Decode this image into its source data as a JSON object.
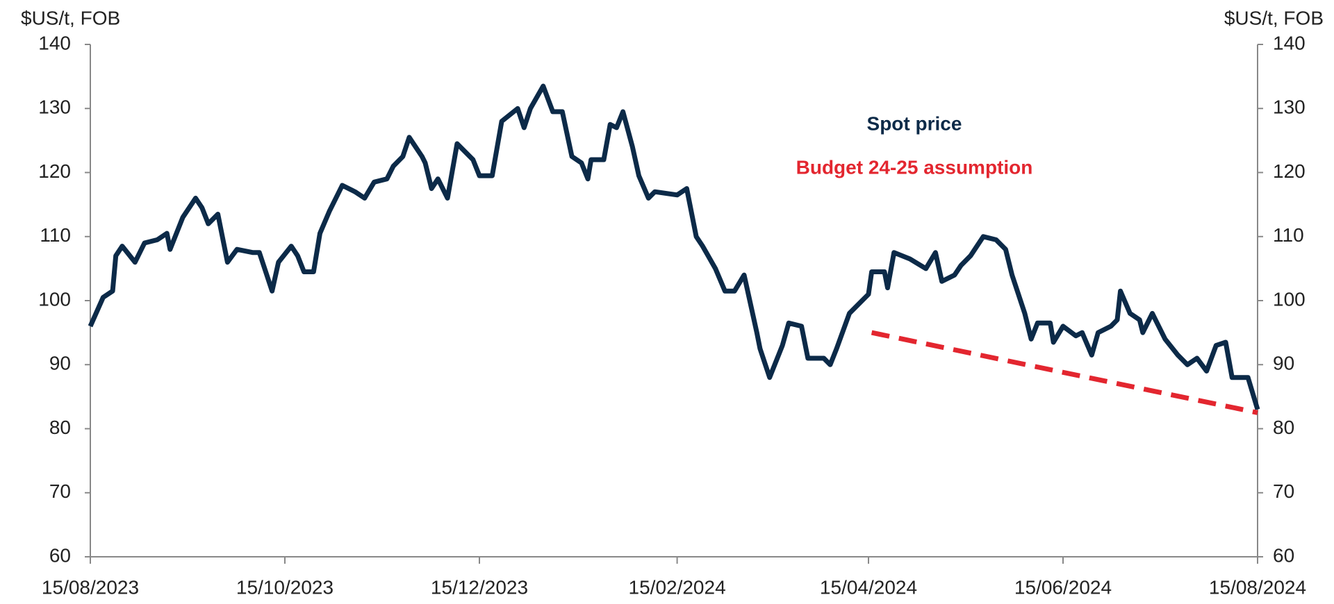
{
  "chart_data": {
    "type": "line",
    "y_label": "$US/t, FOB",
    "y2_label": "$US/t, FOB",
    "ylim": [
      60,
      140
    ],
    "yticks": [
      60,
      70,
      80,
      90,
      100,
      110,
      120,
      130,
      140
    ],
    "y2lim": [
      60,
      140
    ],
    "y2ticks": [
      60,
      70,
      80,
      90,
      100,
      110,
      120,
      130,
      140
    ],
    "xlim": [
      "15/08/2023",
      "15/08/2024"
    ],
    "xticks": [
      "15/08/2023",
      "15/10/2023",
      "15/12/2023",
      "15/02/2024",
      "15/04/2024",
      "15/06/2024",
      "15/08/2024"
    ],
    "grid": false,
    "series": [
      {
        "name": "Spot price",
        "color": "#0c2a48",
        "dashed": false,
        "x": [
          "15/08/2023",
          "19/08/2023",
          "22/08/2023",
          "23/08/2023",
          "25/08/2023",
          "29/08/2023",
          "01/09/2023",
          "05/09/2023",
          "08/09/2023",
          "09/09/2023",
          "13/09/2023",
          "17/09/2023",
          "19/09/2023",
          "21/09/2023",
          "24/09/2023",
          "27/09/2023",
          "30/09/2023",
          "05/10/2023",
          "07/10/2023",
          "11/10/2023",
          "13/10/2023",
          "17/10/2023",
          "19/10/2023",
          "21/10/2023",
          "24/10/2023",
          "26/10/2023",
          "29/10/2023",
          "02/11/2023",
          "06/11/2023",
          "09/11/2023",
          "12/11/2023",
          "16/11/2023",
          "18/11/2023",
          "21/11/2023",
          "23/11/2023",
          "27/11/2023",
          "28/11/2023",
          "30/11/2023",
          "02/12/2023",
          "05/12/2023",
          "08/12/2023",
          "13/12/2023",
          "15/12/2023",
          "19/12/2023",
          "22/12/2023",
          "27/12/2023",
          "29/12/2023",
          "31/12/2023",
          "04/01/2024",
          "07/01/2024",
          "10/01/2024",
          "13/01/2024",
          "16/01/2024",
          "18/01/2024",
          "19/01/2024",
          "23/01/2024",
          "25/01/2024",
          "27/01/2024",
          "29/01/2024",
          "01/02/2024",
          "03/02/2024",
          "06/02/2024",
          "08/02/2024",
          "15/02/2024",
          "18/02/2024",
          "21/02/2024",
          "23/02/2024",
          "27/02/2024",
          "01/03/2024",
          "04/03/2024",
          "07/03/2024",
          "11/03/2024",
          "12/03/2024",
          "15/03/2024",
          "19/03/2024",
          "21/03/2024",
          "25/03/2024",
          "27/03/2024",
          "01/04/2024",
          "03/04/2024",
          "05/04/2024",
          "09/04/2024",
          "12/04/2024",
          "15/04/2024",
          "16/04/2024",
          "20/04/2024",
          "21/04/2024",
          "23/04/2024",
          "28/04/2024",
          "03/05/2024",
          "06/05/2024",
          "08/05/2024",
          "12/05/2024",
          "14/05/2024",
          "17/05/2024",
          "21/05/2024",
          "25/05/2024",
          "28/05/2024",
          "30/05/2024",
          "03/06/2024",
          "05/06/2024",
          "07/06/2024",
          "11/06/2024",
          "12/06/2024",
          "15/06/2024",
          "19/06/2024",
          "21/06/2024",
          "24/06/2024",
          "26/06/2024",
          "30/06/2024",
          "02/07/2024",
          "03/07/2024",
          "06/07/2024",
          "09/07/2024",
          "10/07/2024",
          "13/07/2024",
          "17/07/2024",
          "21/07/2024",
          "24/07/2024",
          "27/07/2024",
          "30/07/2024",
          "02/08/2024",
          "05/08/2024",
          "07/08/2024",
          "12/08/2024",
          "15/08/2024"
        ],
        "values": [
          96,
          100.5,
          101.5,
          107,
          108.5,
          106,
          109,
          109.5,
          110.5,
          108,
          113,
          116,
          114.5,
          112,
          113.5,
          106,
          108,
          107.5,
          107.5,
          101.5,
          106,
          108.5,
          107,
          104.5,
          104.5,
          110.5,
          114,
          118,
          117,
          116,
          118.5,
          119,
          121,
          122.5,
          125.5,
          122.5,
          121.5,
          117.5,
          119,
          116,
          124.5,
          122,
          119.5,
          119.5,
          128,
          130,
          127,
          130,
          133.5,
          129.5,
          129.5,
          122.5,
          121.5,
          119,
          122,
          122,
          127.5,
          127,
          129.5,
          124,
          119.5,
          116,
          117,
          116.5,
          117.5,
          110,
          108.5,
          105,
          101.5,
          101.5,
          104,
          95,
          92.5,
          88,
          93,
          96.5,
          96,
          91,
          91,
          90,
          92.5,
          98,
          99.5,
          101,
          104.5,
          104.5,
          102,
          107.5,
          106.5,
          105,
          107.5,
          103,
          104,
          105.5,
          107,
          110,
          109.5,
          108,
          104,
          98,
          94,
          96.5,
          96.5,
          93.5,
          96,
          94.5,
          95,
          91.5,
          95,
          96,
          97,
          101.5,
          98,
          97,
          95,
          98,
          94,
          91.5,
          90,
          91,
          89,
          93,
          93.5,
          88,
          88,
          83
        ]
      },
      {
        "name": "Budget 24-25 assumption",
        "color": "#e3262f",
        "dashed": true,
        "x": [
          "16/04/2024",
          "15/08/2024"
        ],
        "values": [
          95,
          82.5
        ]
      }
    ]
  }
}
